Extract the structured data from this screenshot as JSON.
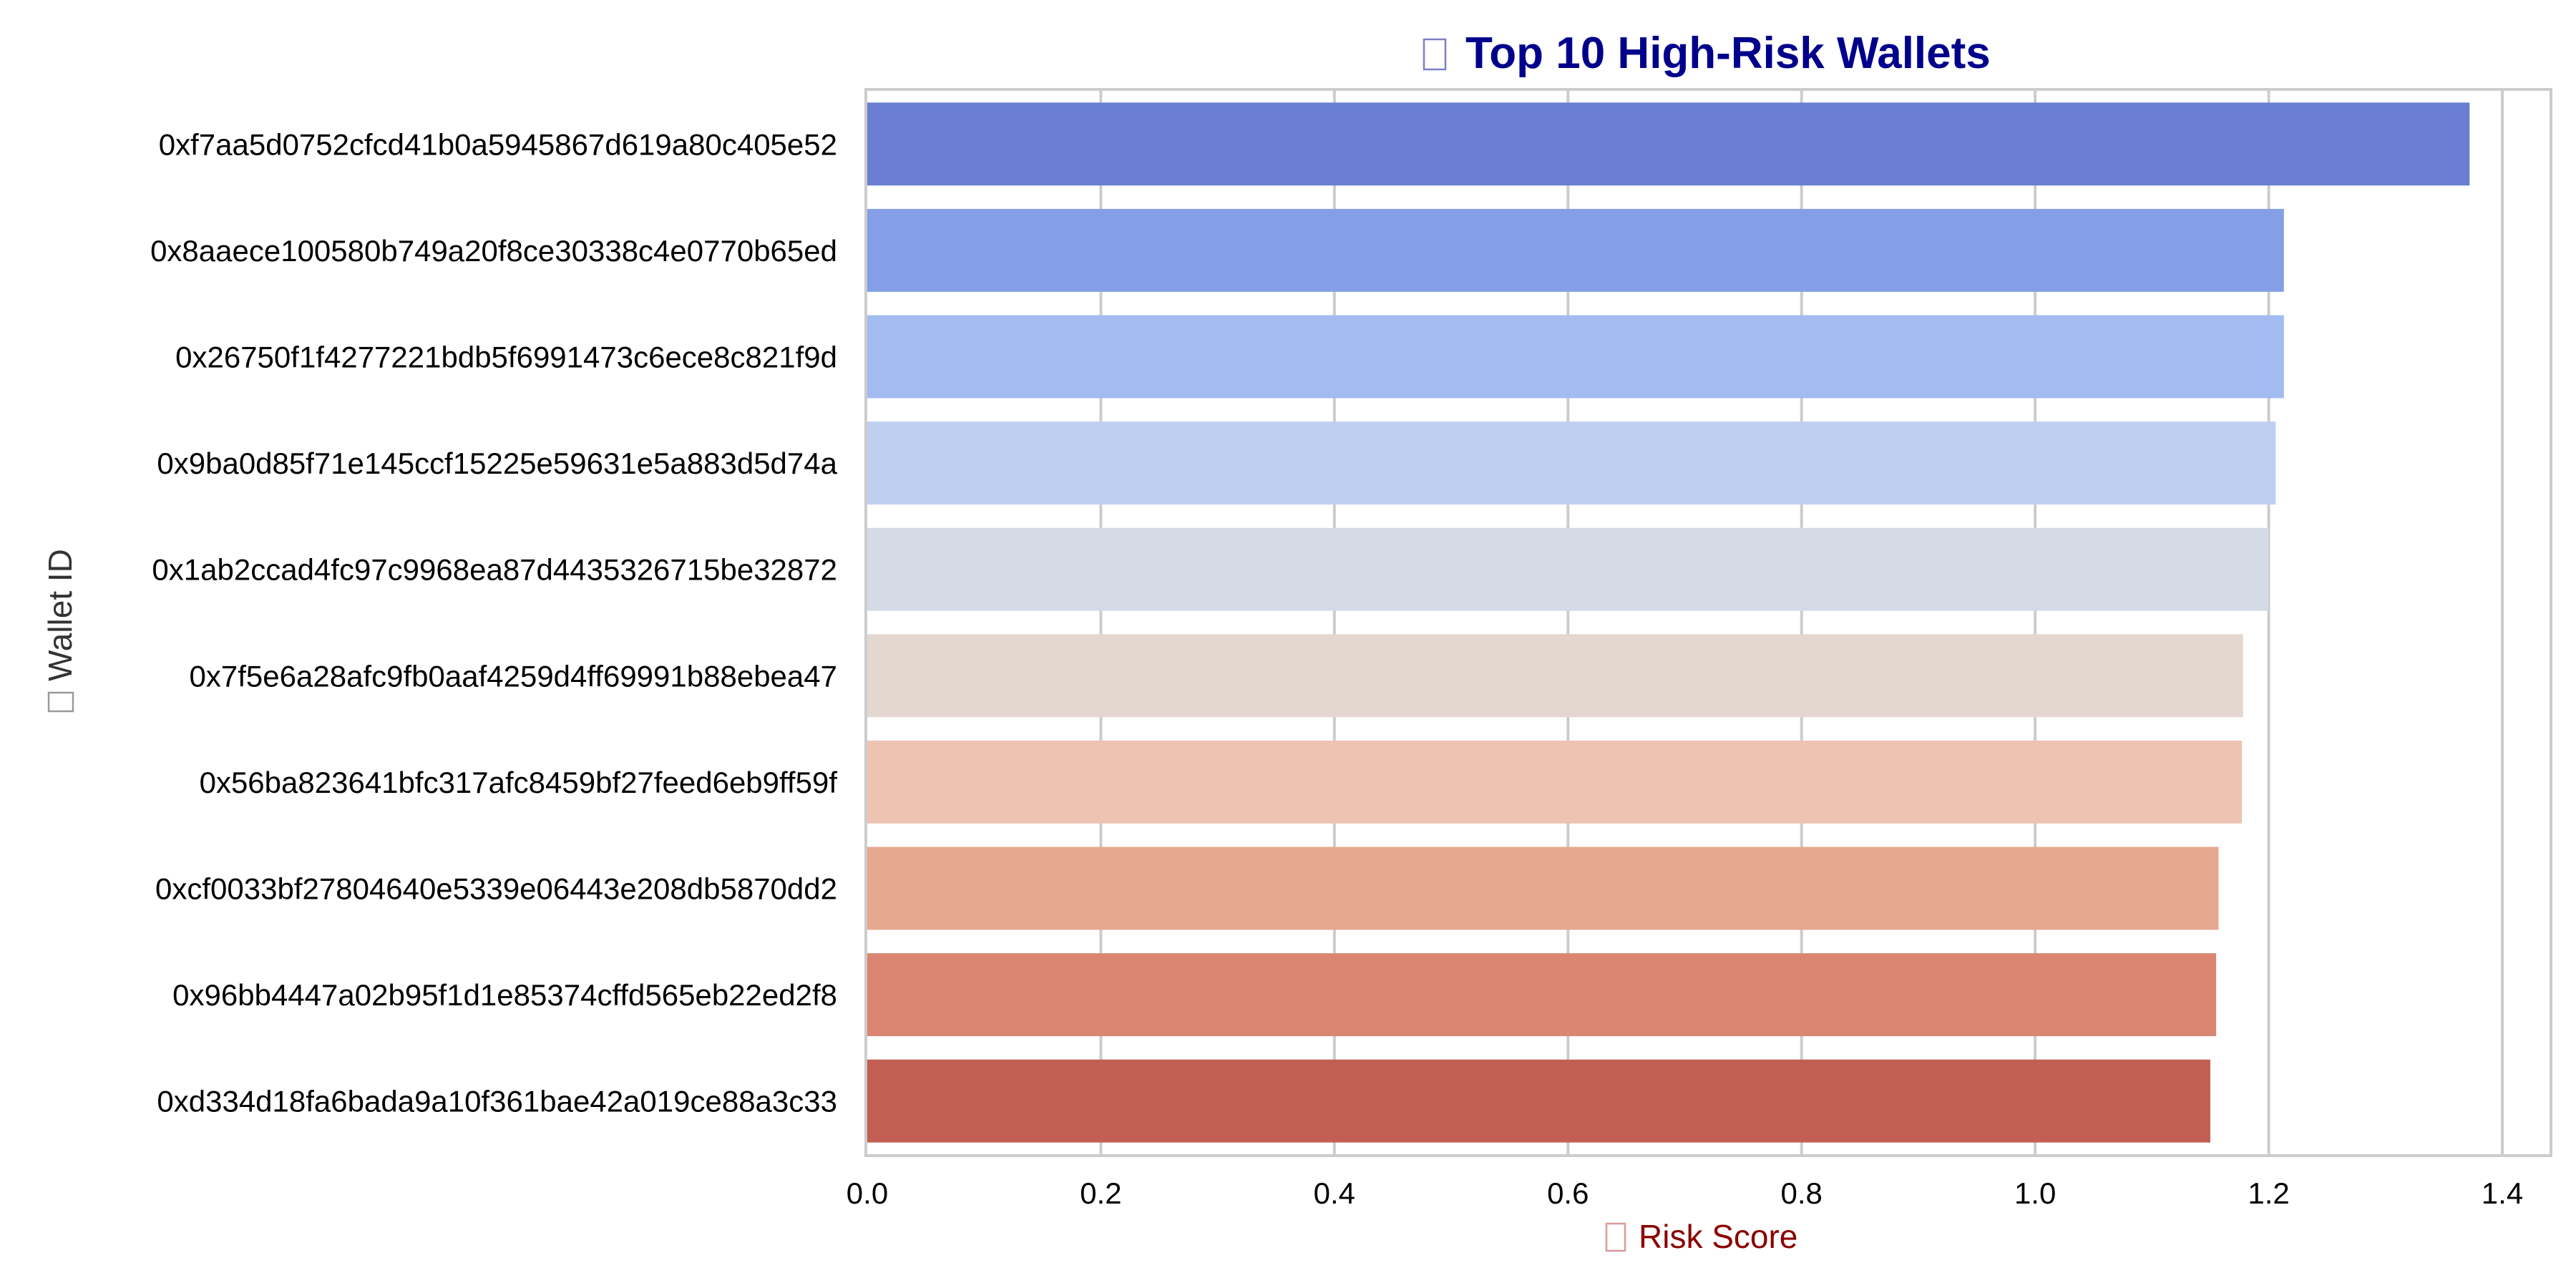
{
  "chart_data": {
    "type": "bar",
    "orientation": "horizontal",
    "title": "Top 10 High-Risk Wallets",
    "title_color": "#00008b",
    "xlabel": "Risk Score",
    "xlabel_color": "#8b0000",
    "ylabel": "Wallet ID",
    "ylabel_color": "#333333",
    "xlim": [
      0,
      1.45
    ],
    "xticks": [
      0,
      0.2,
      0.4,
      0.6,
      0.8,
      1.0,
      1.2,
      1.4
    ],
    "xtick_labels": [
      "0.0",
      "0.2",
      "0.4",
      "0.6",
      "0.8",
      "1.0",
      "1.2",
      "1.4"
    ],
    "grid": true,
    "legend": "none",
    "categories": [
      "0xf7aa5d0752cfcd41b0a5945867d619a80c405e52",
      "0x8aaece100580b749a20f8ce30338c4e0770b65ed",
      "0x26750f1f4277221bdb5f6991473c6ece8c821f9d",
      "0x9ba0d85f71e145ccf15225e59631e5a883d5d74a",
      "0x1ab2ccad4fc97c9968ea87d4435326715be32872",
      "0x7f5e6a28afc9fb0aaf4259d4ff69991b88ebea47",
      "0x56ba823641bfc317afc8459bf27feed6eb9ff59f",
      "0xcf0033bf27804640e5339e06443e208db5870dd2",
      "0x96bb4447a02b95f1d1e85374cffd565eb22ed2f8",
      "0xd334d18fa6bada9a10f361bae42a019ce88a3c33"
    ],
    "values": [
      1.372,
      1.213,
      1.213,
      1.206,
      1.2,
      1.178,
      1.177,
      1.157,
      1.155,
      1.15
    ],
    "colors": [
      "#6a7fd3",
      "#849fe5",
      "#a2bbf1",
      "#becff0",
      "#d4dae6",
      "#e4d7cf",
      "#ecc4b1",
      "#e5a78f",
      "#da8672",
      "#c25e54"
    ]
  }
}
